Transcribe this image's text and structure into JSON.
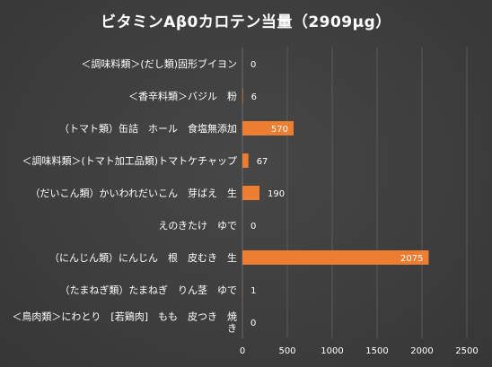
{
  "chart_data": {
    "type": "bar",
    "orientation": "horizontal",
    "title": "ビタミンAβ0カロテン当量（2909μg）",
    "categories": [
      "＜調味料類＞(だし類)固形ブイヨン",
      "＜香辛料類＞バジル　粉",
      "（トマト類）缶詰　ホール　食塩無添加",
      "＜調味料類＞(トマト加工品類)トマトケチャップ",
      "（だいこん類）かいわれだいこん　芽ばえ　生",
      "えのきたけ　ゆで",
      "（にんじん類）にんじん　根　皮むき　生",
      "（たまねぎ類）たまねぎ　りん茎　ゆで",
      "＜鳥肉類＞にわとり　[若鶏肉]　もも　皮つき　焼き"
    ],
    "category_lines": [
      [
        "＜調味料類＞(だし類)固形ブイヨン"
      ],
      [
        "＜香辛料類＞バジル　粉"
      ],
      [
        "（トマト類）缶詰　ホール　食塩無添加"
      ],
      [
        "＜調味料類＞(トマト加工品類)トマトケチャップ"
      ],
      [
        "（だいこん類）かいわれだいこん　芽ばえ　生"
      ],
      [
        "えのきたけ　ゆで"
      ],
      [
        "（にんじん類）にんじん　根　皮むき　生"
      ],
      [
        "（たまねぎ類）たまねぎ　りん茎　ゆで"
      ],
      [
        "＜鳥肉類＞にわとり　[若鶏肉]　もも　皮つき　焼",
        "き"
      ]
    ],
    "values": [
      0,
      6,
      570,
      67,
      190,
      0,
      2075,
      1,
      0
    ],
    "value_labels": [
      "0",
      "6",
      "570",
      "67",
      "190",
      "0",
      "2075",
      "1",
      "0"
    ],
    "xlim": [
      0,
      2500
    ],
    "xticks": [
      0,
      500,
      1000,
      1500,
      2000,
      2500
    ],
    "xtick_labels": [
      "0",
      "500",
      "1000",
      "1500",
      "2000",
      "2500"
    ],
    "xlabel": "",
    "ylabel": "",
    "grid": true,
    "legend": "none",
    "bar_color": "#ed7d31"
  }
}
